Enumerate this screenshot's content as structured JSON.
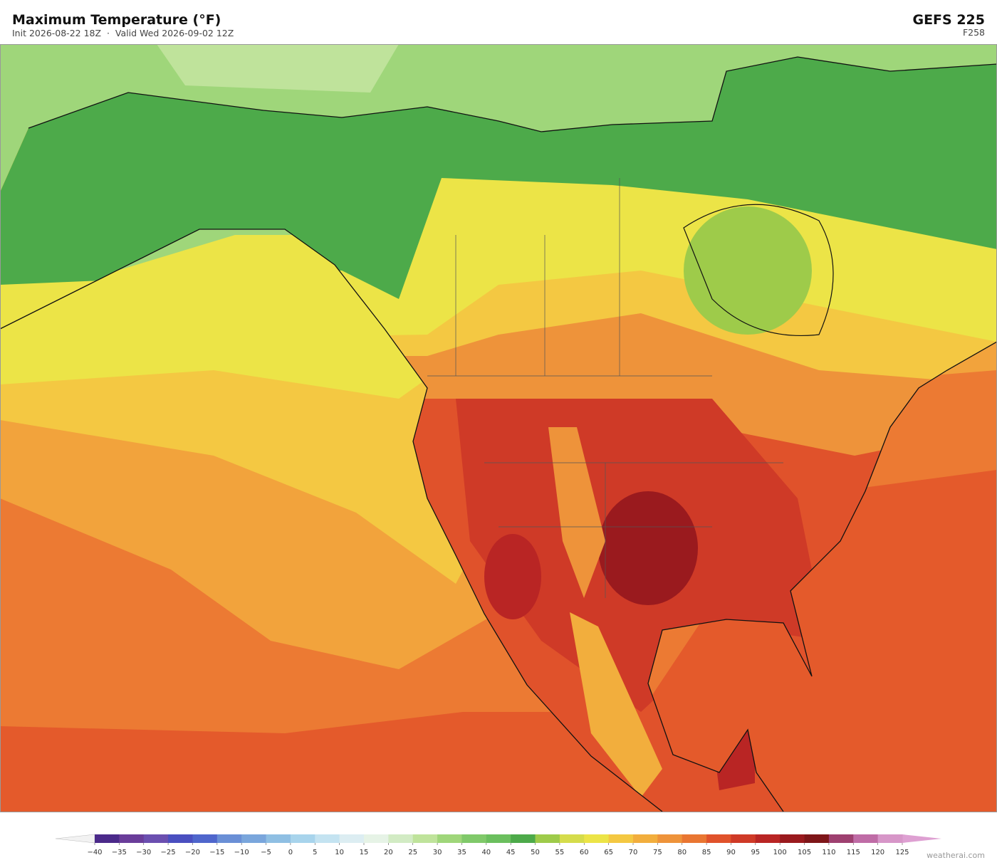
{
  "header": {
    "title": "Maximum Temperature  (°F)",
    "subtitle": "Init 2026-08-22 18Z  ·  Valid Wed 2026-09-02 12Z",
    "model": "GEFS  225",
    "forecast_hour": "F258"
  },
  "colorbar": {
    "ticks": [
      {
        "value": -40,
        "label": "−40"
      },
      {
        "value": -35,
        "label": "−35"
      },
      {
        "value": -30,
        "label": "−30"
      },
      {
        "value": -25,
        "label": "−25"
      },
      {
        "value": -20,
        "label": "−20"
      },
      {
        "value": -15,
        "label": "−15"
      },
      {
        "value": -10,
        "label": "−10"
      },
      {
        "value": -5,
        "label": "−5"
      },
      0,
      5,
      10,
      15,
      20,
      25,
      30,
      35,
      40,
      45,
      50,
      55,
      60,
      65,
      70,
      75,
      80,
      85,
      90,
      95,
      100,
      105,
      110,
      115,
      120,
      125
    ],
    "colors": [
      "#4b2a8a",
      "#6a3d9a",
      "#6b4fb0",
      "#4a4fc0",
      "#4f66cc",
      "#6a8fd6",
      "#7aa6dc",
      "#8fbfe3",
      "#a8d4ec",
      "#c4e3f1",
      "#dcedf2",
      "#e6f3e6",
      "#d2ebc4",
      "#bfe39b",
      "#9fd67a",
      "#80c96a",
      "#6bbf5e",
      "#4daa4a",
      "#9ecb4a",
      "#d5dc4b",
      "#ece447",
      "#f4c842",
      "#f2ae3d",
      "#ee933a",
      "#e97632",
      "#e0522b",
      "#cf3a27",
      "#b92524",
      "#9a1a1e",
      "#7e1619",
      "#9e4070",
      "#bf6ca6",
      "#d796c8"
    ],
    "under_color": "#f2f2f2",
    "over_color": "#dea0d2"
  },
  "footer": {
    "credit": "weatherai.com"
  }
}
